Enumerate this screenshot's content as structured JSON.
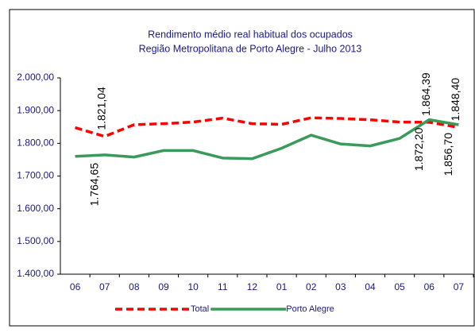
{
  "chart_data": {
    "type": "line",
    "title": "Rendimento médio real habitual dos ocupados",
    "subtitle": "Região Metropolitana de Porto Alegre - Julho 2013",
    "categories": [
      "06",
      "07",
      "08",
      "09",
      "10",
      "11",
      "12",
      "01",
      "02",
      "03",
      "04",
      "05",
      "06",
      "07"
    ],
    "series": [
      {
        "name": "Total",
        "color": "#ff0000",
        "dashed": true,
        "values": [
          1848,
          1821.04,
          1857,
          1860,
          1865,
          1877,
          1860,
          1858,
          1878,
          1876,
          1872,
          1865,
          1864.39,
          1848.4
        ],
        "value_labels": [
          null,
          "1.821,04",
          null,
          null,
          null,
          null,
          null,
          null,
          null,
          null,
          null,
          null,
          "1.864,39",
          "1.848,40"
        ]
      },
      {
        "name": "Porto Alegre",
        "color": "#3a9a5a",
        "dashed": false,
        "values": [
          1760,
          1764.65,
          1758,
          1778,
          1778,
          1755,
          1753,
          1785,
          1825,
          1798,
          1792,
          1815,
          1872.2,
          1856.7
        ],
        "value_labels": [
          null,
          "1.764,65",
          null,
          null,
          null,
          null,
          null,
          null,
          null,
          null,
          null,
          null,
          "1.872,20",
          "1.856,70"
        ]
      }
    ],
    "ylim": [
      1400,
      2000
    ],
    "yticks": [
      {
        "value": 1400,
        "label": "1.400,00"
      },
      {
        "value": 1500,
        "label": "1.500,00"
      },
      {
        "value": 1600,
        "label": "1.600,00"
      },
      {
        "value": 1700,
        "label": "1.700,00"
      },
      {
        "value": 1800,
        "label": "1.800,00"
      },
      {
        "value": 1900,
        "label": "1.900,00"
      },
      {
        "value": 2000,
        "label": "2.000,00"
      }
    ],
    "grid": false,
    "legend": "bottom"
  }
}
